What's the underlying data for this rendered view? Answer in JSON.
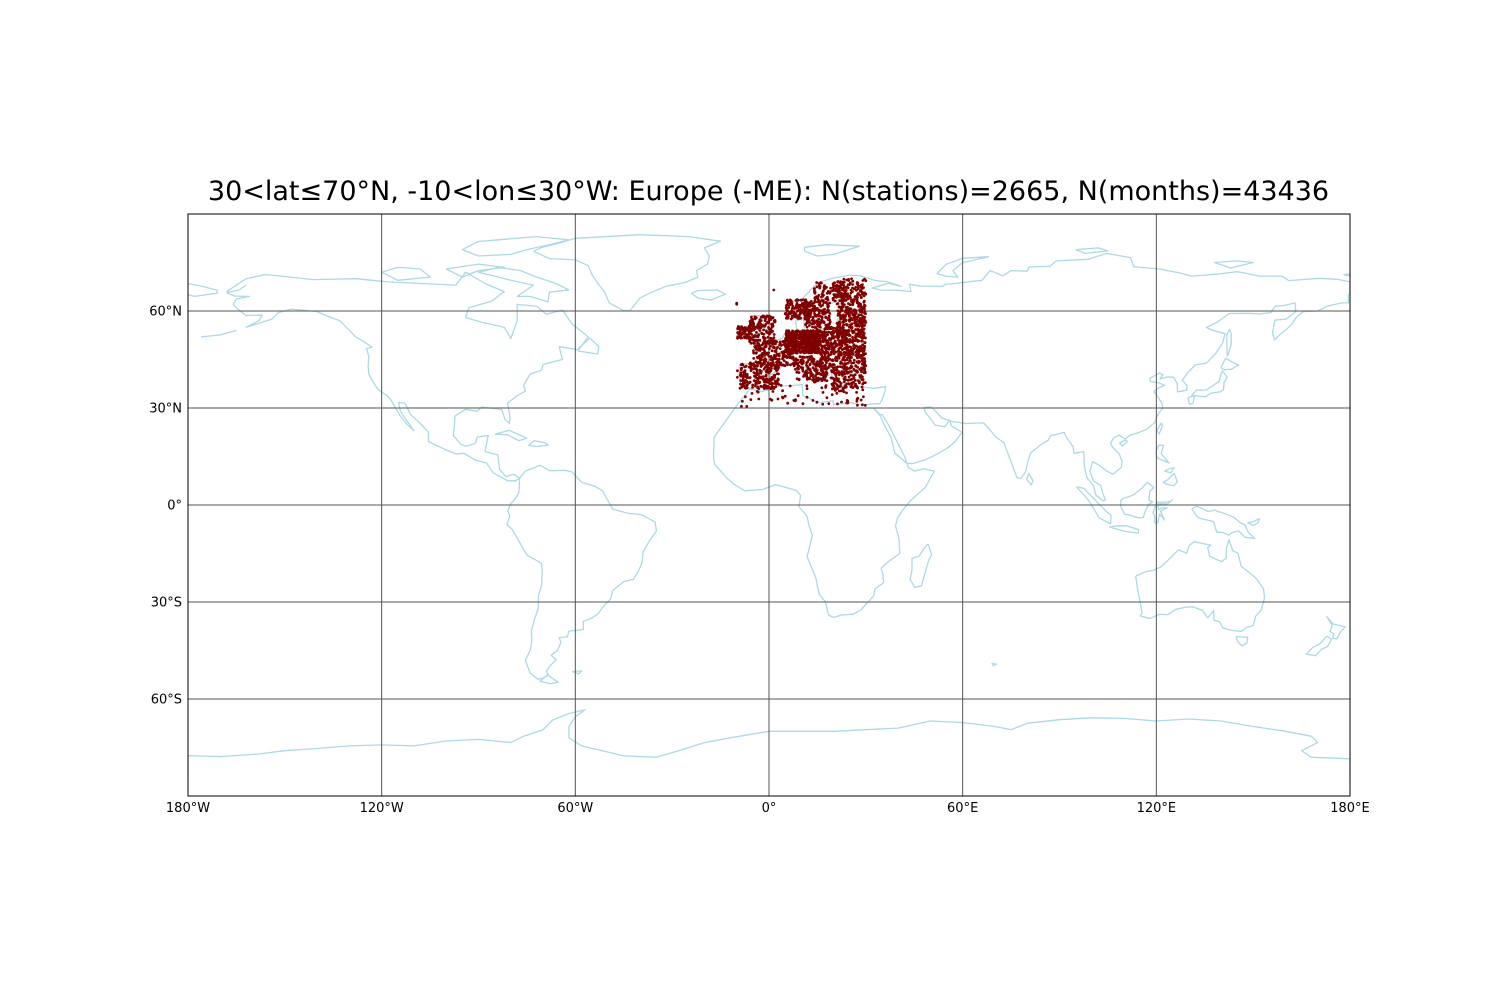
{
  "title": "30<lat≤70°N, -10<lon≤30°W: Europe (-ME): N(stations)=2665, N(months)=43436",
  "map": {
    "projection": "plate-carree",
    "lon_range": [
      -180,
      180
    ],
    "lat_range": [
      -90,
      90
    ],
    "gridlines": true,
    "coastline_color": "#add8e6",
    "station_color": "#800000",
    "lon_ticks": [
      {
        "value": -180,
        "label": "180°W"
      },
      {
        "value": -120,
        "label": "120°W"
      },
      {
        "value": -60,
        "label": "60°W"
      },
      {
        "value": 0,
        "label": "0°"
      },
      {
        "value": 60,
        "label": "60°E"
      },
      {
        "value": 120,
        "label": "120°E"
      },
      {
        "value": 180,
        "label": "180°E"
      }
    ],
    "lat_ticks": [
      {
        "value": 60,
        "label": "60°N"
      },
      {
        "value": 30,
        "label": "30°N"
      },
      {
        "value": 0,
        "label": "0°"
      },
      {
        "value": -30,
        "label": "30°S"
      },
      {
        "value": -60,
        "label": "60°S"
      }
    ]
  }
}
